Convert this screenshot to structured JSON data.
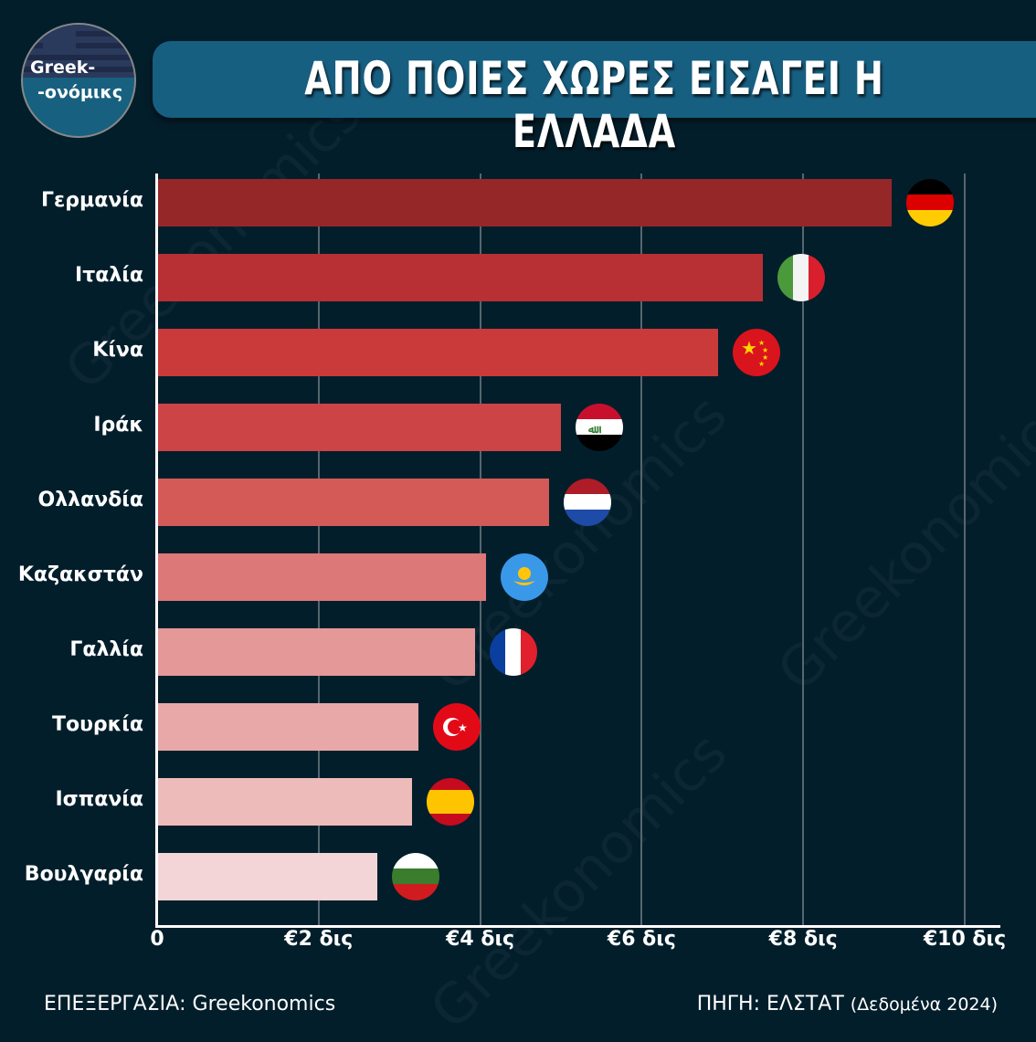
{
  "logo": {
    "line1": "Greek-",
    "line2": "-ονόμικς"
  },
  "title": "ΑΠΟ ΠΟΙΕΣ ΧΩΡΕΣ ΕΙΣΑΓΕΙ Η ΕΛΛΑΔΑ",
  "watermark": "Greekonomics",
  "chart_data": {
    "type": "bar",
    "orientation": "horizontal",
    "categories": [
      "Γερμανία",
      "Ιταλία",
      "Κίνα",
      "Ιράκ",
      "Ολλανδία",
      "Καζακστάν",
      "Γαλλία",
      "Τουρκία",
      "Ισπανία",
      "Βουλγαρία"
    ],
    "values": [
      9.1,
      7.5,
      6.95,
      5.0,
      4.85,
      4.07,
      3.94,
      3.24,
      3.16,
      2.73
    ],
    "unit": "δισ. €",
    "xlim": [
      0,
      10
    ],
    "xticks": [
      0,
      2,
      4,
      6,
      8,
      10
    ],
    "xtick_labels": [
      "0",
      "€2 δις",
      "€4 δις",
      "€6 δις",
      "€8 δις",
      "€10 δις"
    ],
    "grid": "vertical",
    "bar_colors": [
      "#952729",
      "#b83033",
      "#cb3a3a",
      "#cc4446",
      "#d45a58",
      "#dc7877",
      "#e49897",
      "#e8a8a8",
      "#eebbbb",
      "#f4d5d7"
    ],
    "flag_icons": [
      "germany-flag",
      "italy-flag",
      "china-flag",
      "iraq-flag",
      "netherlands-flag",
      "kazakhstan-flag",
      "france-flag",
      "turkey-flag",
      "spain-flag",
      "bulgaria-flag"
    ]
  },
  "footer": {
    "left": "ΕΠΕΞΕΡΓΑΣΙΑ: Greekonomics",
    "right": "ΠΗΓΗ: ΕΛΣΤΑΤ",
    "right_note": "(Δεδομένα 2024)"
  }
}
